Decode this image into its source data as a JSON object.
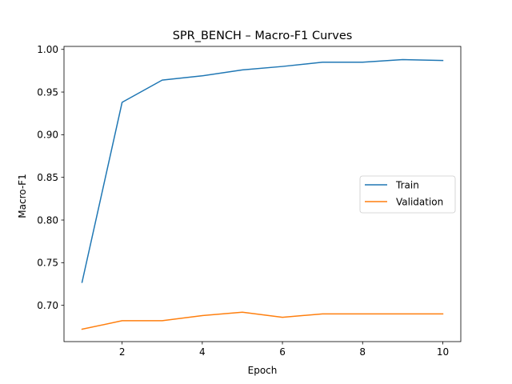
{
  "chart_data": {
    "type": "line",
    "title": "SPR_BENCH – Macro-F1 Curves",
    "xlabel": "Epoch",
    "ylabel": "Macro-F1",
    "x": [
      1,
      2,
      3,
      4,
      5,
      6,
      7,
      8,
      9,
      10
    ],
    "xlim": [
      0.55,
      10.45
    ],
    "ylim": [
      0.6575,
      1.0035
    ],
    "xticks": [
      2,
      4,
      6,
      8,
      10
    ],
    "yticks": [
      0.7,
      0.75,
      0.8,
      0.85,
      0.9,
      0.95,
      1.0
    ],
    "grid": false,
    "legend_position": "center-right",
    "series": [
      {
        "name": "Train",
        "color": "#1f77b4",
        "values": [
          0.727,
          0.938,
          0.964,
          0.969,
          0.976,
          0.98,
          0.985,
          0.985,
          0.988,
          0.987
        ]
      },
      {
        "name": "Validation",
        "color": "#ff7f0e",
        "values": [
          0.672,
          0.682,
          0.682,
          0.688,
          0.692,
          0.686,
          0.69,
          0.69,
          0.69,
          0.69
        ]
      }
    ]
  }
}
